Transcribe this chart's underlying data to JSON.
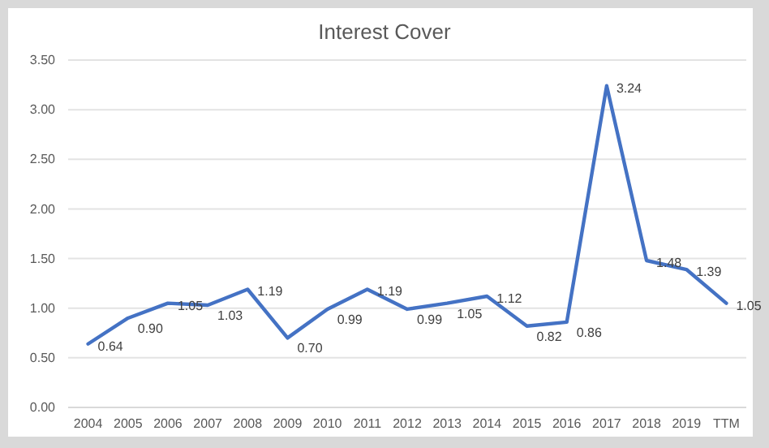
{
  "chart_data": {
    "type": "line",
    "title": "Interest Cover",
    "categories": [
      "2004",
      "2005",
      "2006",
      "2007",
      "2008",
      "2009",
      "2010",
      "2011",
      "2012",
      "2013",
      "2014",
      "2015",
      "2016",
      "2017",
      "2018",
      "2019",
      "TTM"
    ],
    "series": [
      {
        "color": "#4472c4",
        "values": [
          0.64,
          0.9,
          1.05,
          1.03,
          1.19,
          0.7,
          0.99,
          1.19,
          0.99,
          1.05,
          1.12,
          0.82,
          0.86,
          3.24,
          1.48,
          1.39,
          1.05
        ],
        "value_labels": [
          "0.64",
          "0.90",
          "1.05",
          "1.03",
          "1.19",
          "0.70",
          "0.99",
          "1.19",
          "0.99",
          "1.05",
          "1.12",
          "0.82",
          "0.86",
          "3.24",
          "1.48",
          "1.39",
          "1.05"
        ]
      }
    ],
    "ylim": [
      0,
      3.5
    ],
    "yticks": [
      {
        "value": 0,
        "label": "0.00"
      },
      {
        "value": 0.5,
        "label": "0.50"
      },
      {
        "value": 1,
        "label": "1.00"
      },
      {
        "value": 1.5,
        "label": "1.50"
      },
      {
        "value": 2,
        "label": "2.00"
      },
      {
        "value": 2.5,
        "label": "2.50"
      },
      {
        "value": 3,
        "label": "3.00"
      },
      {
        "value": 3.5,
        "label": "3.50"
      }
    ],
    "grid": "y",
    "marker": "none",
    "line_style": "solid"
  }
}
